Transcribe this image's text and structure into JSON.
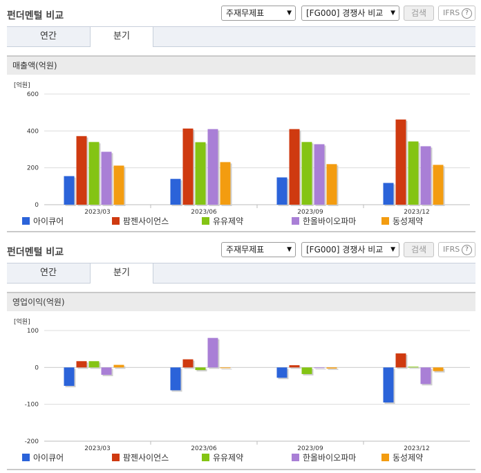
{
  "colors": {
    "s0": "#2b63d9",
    "s1": "#cf3a10",
    "s2": "#84c414",
    "s3": "#a97fd6",
    "s4": "#f39c10"
  },
  "panels": [
    {
      "title": "펀더멘털 비교",
      "select1": "주재무제표",
      "select2": "[FG000] 경쟁사 비교",
      "search_label": "검색",
      "ifrs_label": "IFRS",
      "ifrs_help": "?",
      "tabs": [
        {
          "label": "연간"
        },
        {
          "label": "분기"
        }
      ],
      "metric_title": "매출액(억원)"
    },
    {
      "title": "펀더멘털 비교",
      "select1": "주재무제표",
      "select2": "[FG000] 경쟁사 비교",
      "search_label": "검색",
      "ifrs_label": "IFRS",
      "ifrs_help": "?",
      "tabs": [
        {
          "label": "연간"
        },
        {
          "label": "분기"
        }
      ],
      "metric_title": "영업이익(억원)"
    }
  ],
  "chart_data": [
    {
      "type": "bar",
      "ylabel": "[억원]",
      "ylim": [
        0,
        600
      ],
      "yticks": [
        0,
        200,
        400,
        600
      ],
      "grid": true,
      "legend": "bottom",
      "categories": [
        "2023/03",
        "2023/06",
        "2023/09",
        "2023/12"
      ],
      "series": [
        {
          "name": "아이큐어",
          "values": [
            155,
            140,
            148,
            118
          ]
        },
        {
          "name": "팜젠사이언스",
          "values": [
            372,
            413,
            410,
            462
          ]
        },
        {
          "name": "유유제약",
          "values": [
            340,
            339,
            340,
            343
          ]
        },
        {
          "name": "한올바이오파마",
          "values": [
            287,
            410,
            328,
            317
          ]
        },
        {
          "name": "동성제약",
          "values": [
            212,
            231,
            220,
            216
          ]
        }
      ]
    },
    {
      "type": "bar",
      "ylabel": "[억원]",
      "ylim": [
        -200,
        100
      ],
      "yticks": [
        -200,
        -100,
        0,
        100
      ],
      "grid": true,
      "legend": "bottom",
      "categories": [
        "2023/03",
        "2023/06",
        "2023/09",
        "2023/12"
      ],
      "series": [
        {
          "name": "아이큐어",
          "values": [
            -50,
            -62,
            -28,
            -95
          ]
        },
        {
          "name": "팜젠사이언스",
          "values": [
            17,
            22,
            6,
            38
          ]
        },
        {
          "name": "유유제약",
          "values": [
            17,
            -7,
            -18,
            2
          ]
        },
        {
          "name": "한올바이오파마",
          "values": [
            -20,
            80,
            -2,
            -45
          ]
        },
        {
          "name": "동성제약",
          "values": [
            7,
            -2,
            -3,
            -10
          ]
        }
      ]
    }
  ]
}
